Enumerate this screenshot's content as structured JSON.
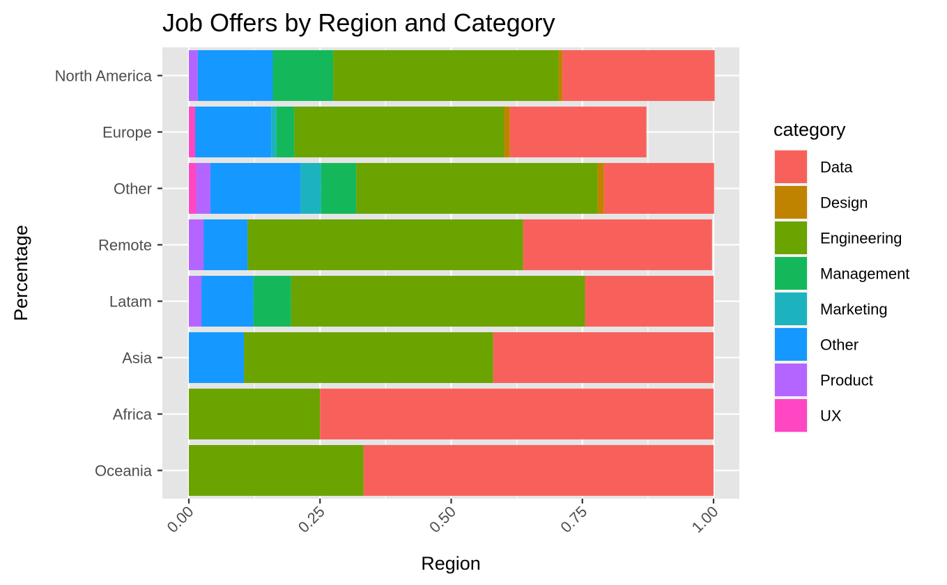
{
  "chart_data": {
    "type": "bar",
    "orientation": "horizontal",
    "stacked": "fill",
    "title": "Job Offers by Region and Category",
    "xlabel": "Region",
    "ylabel": "Percentage",
    "xlim": [
      0,
      1
    ],
    "x_ticks": [
      "0.00",
      "0.25",
      "0.50",
      "0.75",
      "1.00"
    ],
    "x_tick_values": [
      0,
      0.25,
      0.5,
      0.75,
      1
    ],
    "grid": true,
    "legend": {
      "title": "category",
      "position": "right"
    },
    "categories": [
      "North America",
      "Europe",
      "Other",
      "Remote",
      "Latam",
      "Asia",
      "Africa",
      "Oceania"
    ],
    "stack_order": [
      "UX",
      "Product",
      "Other",
      "Marketing",
      "Management",
      "Engineering",
      "Design",
      "Data"
    ],
    "series": [
      {
        "name": "Data",
        "color": "#F8766D",
        "values": [
          0.29,
          0.26,
          0.21,
          0.36,
          0.245,
          0.42,
          0.75,
          0.667
        ]
      },
      {
        "name": "Design",
        "color": "#C49A00",
        "values": [
          0.007,
          0.011,
          0.012,
          0,
          0,
          0,
          0,
          0
        ]
      },
      {
        "name": "Engineering",
        "color": "#53B400",
        "values": [
          0.43,
          0.4,
          0.46,
          0.525,
          0.56,
          0.475,
          0.25,
          0.333
        ]
      },
      {
        "name": "Management",
        "color": "#00C094",
        "values": [
          0.115,
          0.034,
          0.067,
          0,
          0.072,
          0,
          0,
          0
        ]
      },
      {
        "name": "Marketing",
        "color": "#00B6EB",
        "values": [
          0,
          0.01,
          0.039,
          0,
          0,
          0,
          0,
          0
        ]
      },
      {
        "name": "Other",
        "color": "#06A4FF",
        "values": [
          0.143,
          0.145,
          0.172,
          0.084,
          0.099,
          0.105,
          0,
          0
        ]
      },
      {
        "name": "Product",
        "color": "#A58AFF",
        "values": [
          0.017,
          0,
          0.027,
          0.028,
          0.024,
          0,
          0,
          0
        ]
      },
      {
        "name": "UX",
        "color": "#FB61D7",
        "values": [
          0,
          0.012,
          0.014,
          0,
          0,
          0,
          0,
          0
        ]
      }
    ],
    "render_colors": {
      "Data": "#F8615B",
      "Design": "#C08300",
      "Engineering": "#6BA300",
      "Management": "#14B85A",
      "Marketing": "#1CB3BE",
      "Other": "#1598FF",
      "Product": "#B565FF",
      "UX": "#FF46C3"
    },
    "panel_background": "#E5E5E5",
    "grid_color": "#FFFFFF"
  }
}
